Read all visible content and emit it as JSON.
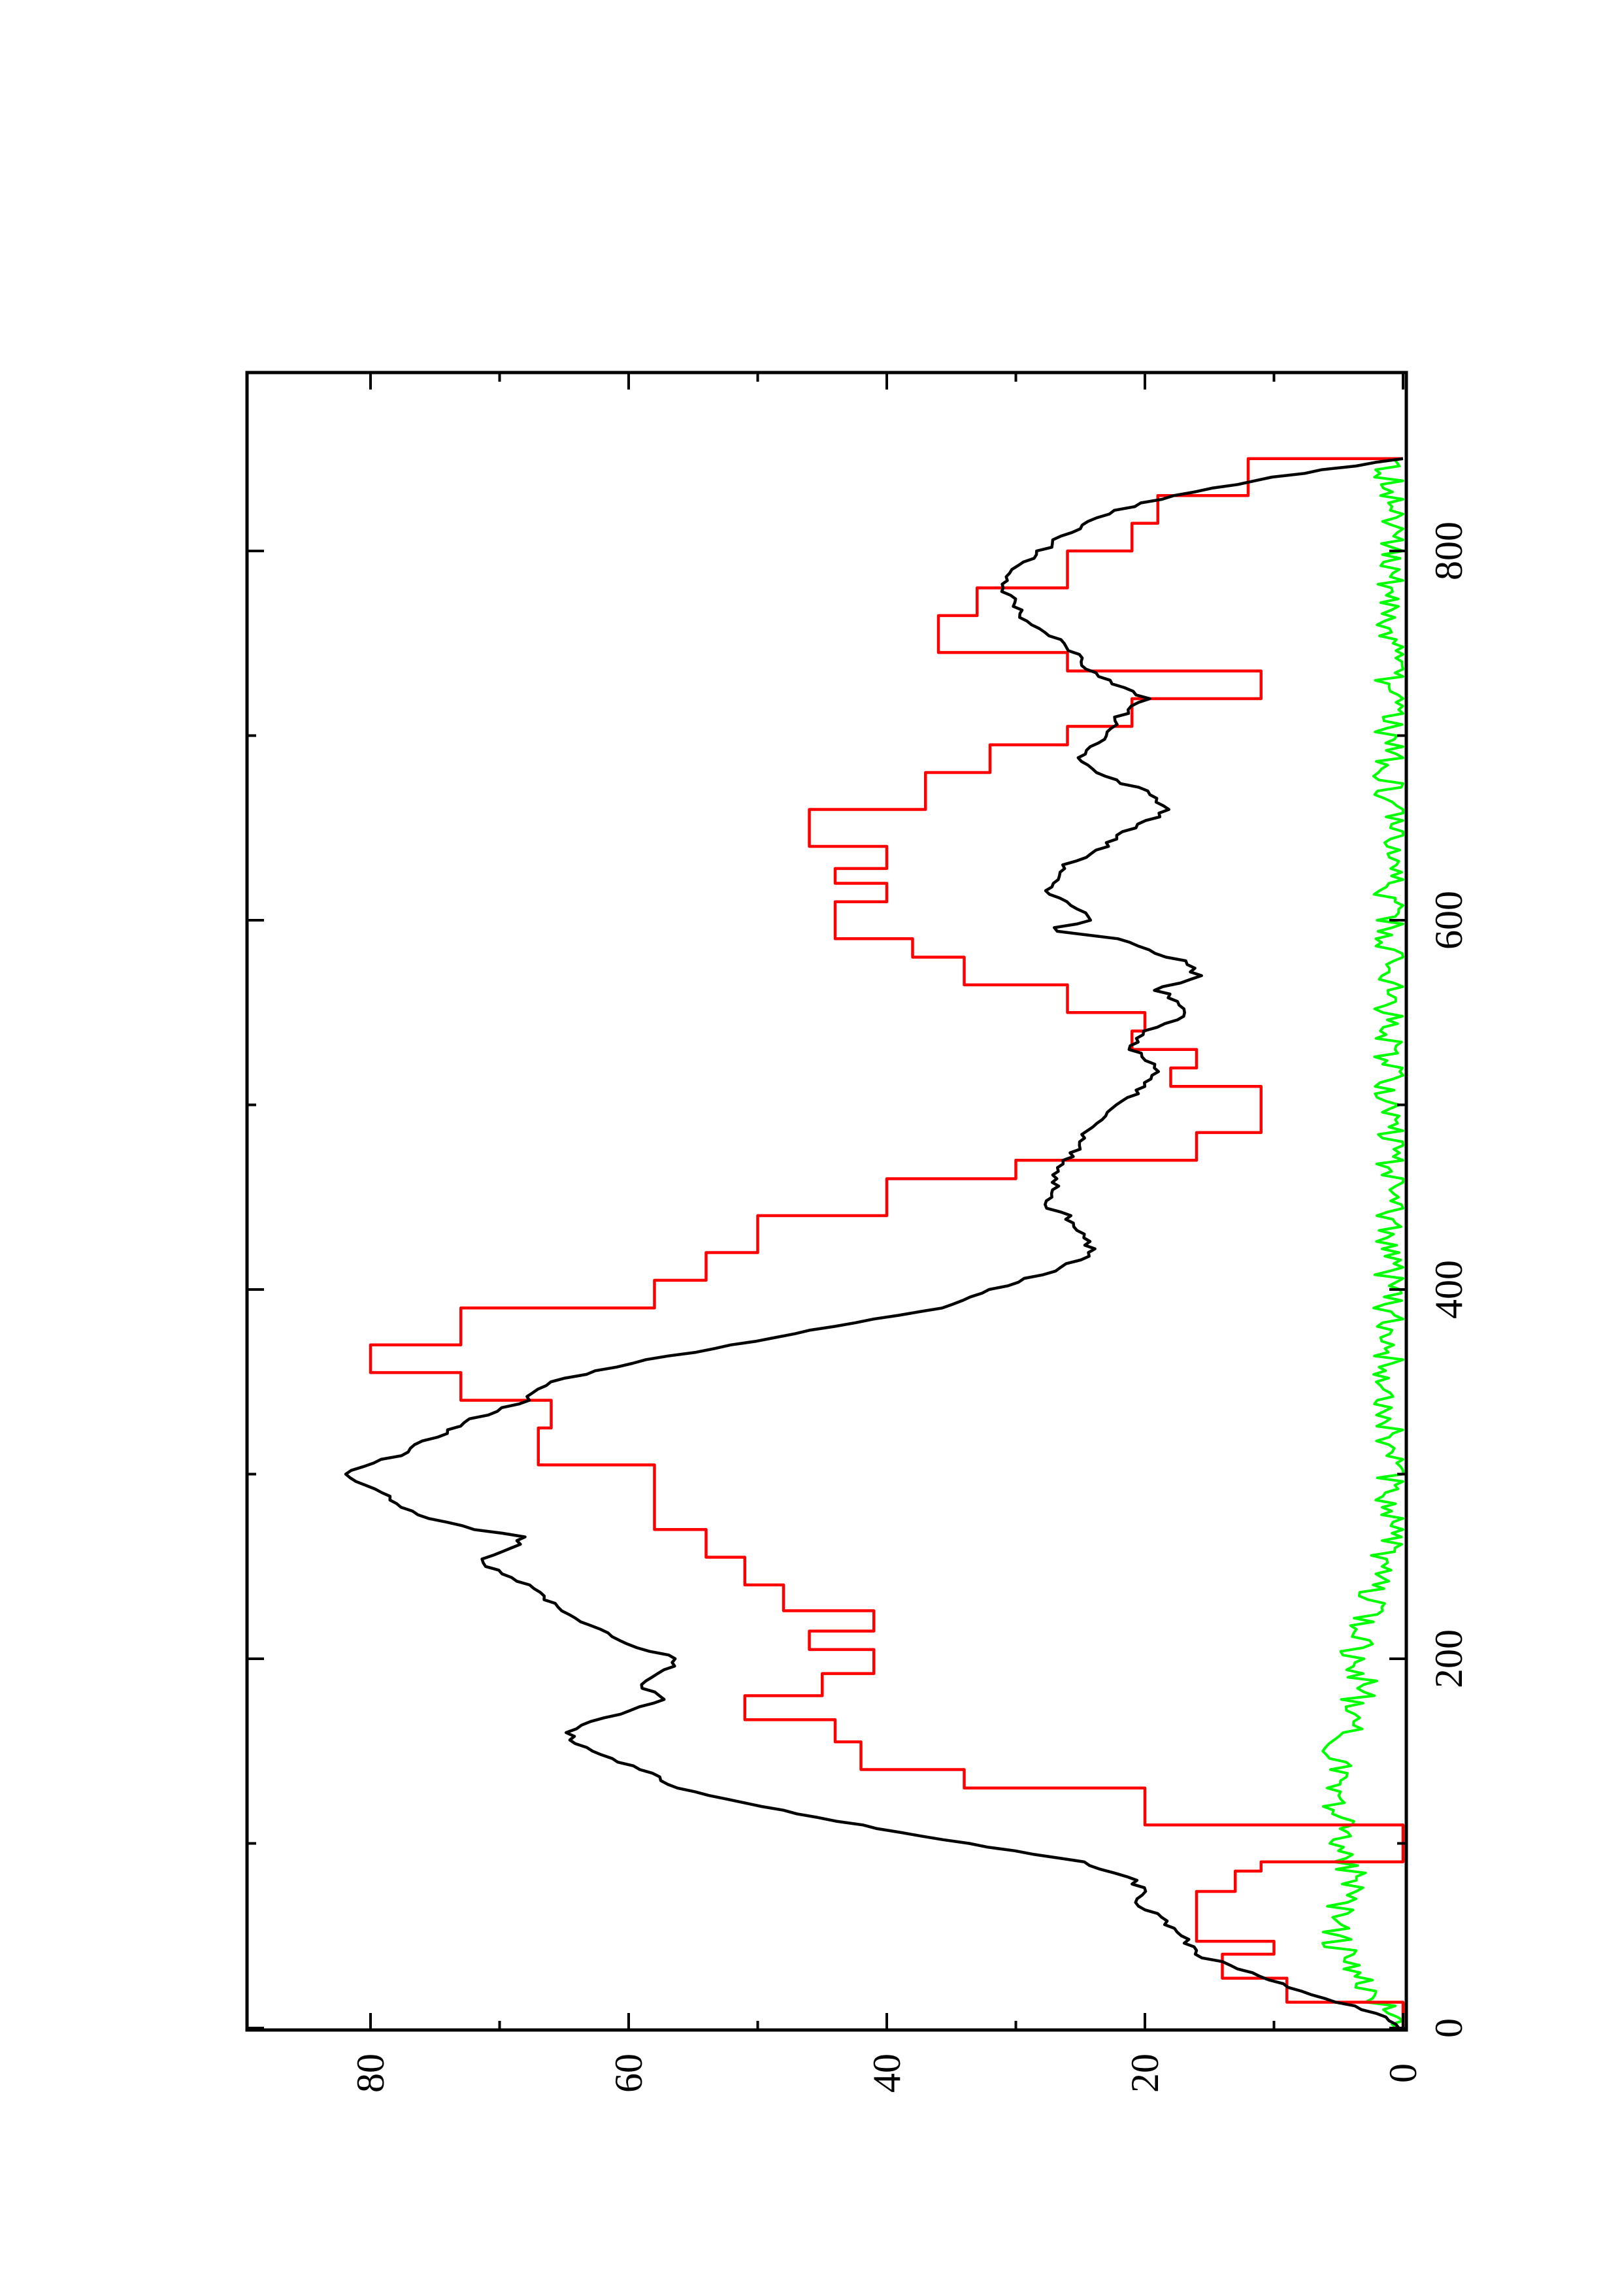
{
  "chart_data": {
    "type": "line",
    "title": "",
    "xlabel": "",
    "ylabel": "",
    "orientation": "rotated-90-counterclockwise",
    "xlim": [
      0,
      900
    ],
    "ylim": [
      0,
      90
    ],
    "x_ticks": [
      0,
      200,
      400,
      600,
      800
    ],
    "x_minor_ticks": [
      100,
      300,
      500,
      700
    ],
    "y_ticks": [
      0,
      20,
      40,
      60,
      80
    ],
    "y_minor_ticks": [
      10,
      30,
      50,
      70
    ],
    "grid": false,
    "legend": "none",
    "series": [
      {
        "color": "#ff0000",
        "style": "step",
        "points": [
          [
            0,
            0
          ],
          [
            14,
            9
          ],
          [
            27,
            14
          ],
          [
            40,
            10
          ],
          [
            47,
            16
          ],
          [
            62,
            16
          ],
          [
            74,
            13
          ],
          [
            85,
            11
          ],
          [
            90,
            0
          ],
          [
            110,
            20
          ],
          [
            130,
            34
          ],
          [
            140,
            42
          ],
          [
            155,
            44
          ],
          [
            167,
            51
          ],
          [
            180,
            45
          ],
          [
            192,
            41
          ],
          [
            205,
            46
          ],
          [
            215,
            41
          ],
          [
            226,
            48
          ],
          [
            240,
            51
          ],
          [
            255,
            54
          ],
          [
            270,
            58
          ],
          [
            290,
            58
          ],
          [
            305,
            67
          ],
          [
            325,
            66
          ],
          [
            340,
            73
          ],
          [
            355,
            80
          ],
          [
            370,
            73
          ],
          [
            390,
            58
          ],
          [
            405,
            54
          ],
          [
            420,
            50
          ],
          [
            440,
            40
          ],
          [
            460,
            30
          ],
          [
            470,
            16
          ],
          [
            485,
            11
          ],
          [
            500,
            11
          ],
          [
            510,
            18
          ],
          [
            520,
            16
          ],
          [
            530,
            21
          ],
          [
            540,
            20
          ],
          [
            550,
            26
          ],
          [
            565,
            34
          ],
          [
            580,
            38
          ],
          [
            590,
            44
          ],
          [
            600,
            44
          ],
          [
            610,
            40
          ],
          [
            620,
            44
          ],
          [
            628,
            40
          ],
          [
            640,
            46
          ],
          [
            660,
            37
          ],
          [
            680,
            32
          ],
          [
            695,
            26
          ],
          [
            705,
            21
          ],
          [
            720,
            11
          ],
          [
            735,
            26
          ],
          [
            745,
            36
          ],
          [
            755,
            36
          ],
          [
            765,
            33
          ],
          [
            780,
            26
          ],
          [
            800,
            21
          ],
          [
            815,
            19
          ],
          [
            830,
            12
          ],
          [
            850,
            0
          ]
        ]
      },
      {
        "color": "#000000",
        "style": "line",
        "points": [
          [
            0,
            0
          ],
          [
            5,
            1
          ],
          [
            10,
            3
          ],
          [
            20,
            8
          ],
          [
            30,
            12
          ],
          [
            40,
            16
          ],
          [
            50,
            17
          ],
          [
            60,
            19
          ],
          [
            70,
            21
          ],
          [
            75,
            20
          ],
          [
            80,
            21
          ],
          [
            90,
            25
          ],
          [
            100,
            34
          ],
          [
            110,
            42
          ],
          [
            120,
            50
          ],
          [
            130,
            56
          ],
          [
            140,
            59
          ],
          [
            150,
            63
          ],
          [
            160,
            65
          ],
          [
            165,
            63
          ],
          [
            172,
            60
          ],
          [
            178,
            57
          ],
          [
            185,
            59
          ],
          [
            190,
            58
          ],
          [
            195,
            57
          ],
          [
            200,
            56
          ],
          [
            205,
            59
          ],
          [
            210,
            61
          ],
          [
            215,
            62
          ],
          [
            220,
            64
          ],
          [
            225,
            65
          ],
          [
            230,
            66
          ],
          [
            235,
            67
          ],
          [
            240,
            68
          ],
          [
            250,
            71
          ],
          [
            255,
            71
          ],
          [
            260,
            69
          ],
          [
            266,
            68
          ],
          [
            270,
            72
          ],
          [
            275,
            75
          ],
          [
            280,
            77
          ],
          [
            290,
            79
          ],
          [
            300,
            82
          ],
          [
            305,
            80
          ],
          [
            310,
            78
          ],
          [
            320,
            75
          ],
          [
            330,
            72
          ],
          [
            340,
            68
          ],
          [
            350,
            66
          ],
          [
            360,
            60
          ],
          [
            370,
            52
          ],
          [
            380,
            44
          ],
          [
            390,
            36
          ],
          [
            400,
            32
          ],
          [
            410,
            27
          ],
          [
            420,
            24
          ],
          [
            430,
            25
          ],
          [
            440,
            26
          ],
          [
            445,
            28
          ],
          [
            450,
            27
          ],
          [
            460,
            27
          ],
          [
            470,
            26
          ],
          [
            480,
            25
          ],
          [
            490,
            24
          ],
          [
            500,
            22
          ],
          [
            505,
            21
          ],
          [
            510,
            20
          ],
          [
            520,
            19
          ],
          [
            530,
            21
          ],
          [
            540,
            20
          ],
          [
            548,
            17
          ],
          [
            555,
            17
          ],
          [
            562,
            19
          ],
          [
            570,
            16
          ],
          [
            578,
            17
          ],
          [
            584,
            20
          ],
          [
            590,
            22
          ],
          [
            595,
            28
          ],
          [
            600,
            24
          ],
          [
            605,
            25
          ],
          [
            610,
            26
          ],
          [
            615,
            28
          ],
          [
            620,
            27
          ],
          [
            625,
            27
          ],
          [
            630,
            26
          ],
          [
            640,
            23
          ],
          [
            650,
            21
          ],
          [
            660,
            18
          ],
          [
            670,
            20
          ],
          [
            675,
            22
          ],
          [
            680,
            24
          ],
          [
            690,
            25
          ],
          [
            700,
            23
          ],
          [
            710,
            22
          ],
          [
            720,
            20
          ],
          [
            730,
            23
          ],
          [
            740,
            25
          ],
          [
            750,
            26
          ],
          [
            760,
            29
          ],
          [
            770,
            30
          ],
          [
            780,
            31
          ],
          [
            790,
            30
          ],
          [
            800,
            28
          ],
          [
            810,
            26
          ],
          [
            820,
            23
          ],
          [
            830,
            18
          ],
          [
            840,
            10
          ],
          [
            850,
            0
          ]
        ]
      },
      {
        "color": "#00ff00",
        "style": "noisy",
        "points": [
          [
            0,
            0.5
          ],
          [
            15,
            2
          ],
          [
            30,
            4
          ],
          [
            45,
            5
          ],
          [
            60,
            5
          ],
          [
            75,
            4
          ],
          [
            85,
            4
          ],
          [
            100,
            5
          ],
          [
            115,
            5
          ],
          [
            130,
            5
          ],
          [
            150,
            5
          ],
          [
            170,
            4
          ],
          [
            190,
            3
          ],
          [
            200,
            4
          ],
          [
            220,
            3
          ],
          [
            250,
            2
          ],
          [
            270,
            1
          ],
          [
            300,
            1
          ],
          [
            330,
            1
          ],
          [
            350,
            1
          ],
          [
            380,
            1
          ],
          [
            400,
            1
          ],
          [
            430,
            1
          ],
          [
            460,
            1
          ],
          [
            490,
            1
          ],
          [
            520,
            1
          ],
          [
            550,
            1
          ],
          [
            580,
            1
          ],
          [
            610,
            1
          ],
          [
            640,
            1
          ],
          [
            670,
            1
          ],
          [
            700,
            1
          ],
          [
            730,
            1
          ],
          [
            760,
            1
          ],
          [
            790,
            1
          ],
          [
            820,
            1
          ],
          [
            850,
            1
          ]
        ]
      }
    ]
  }
}
